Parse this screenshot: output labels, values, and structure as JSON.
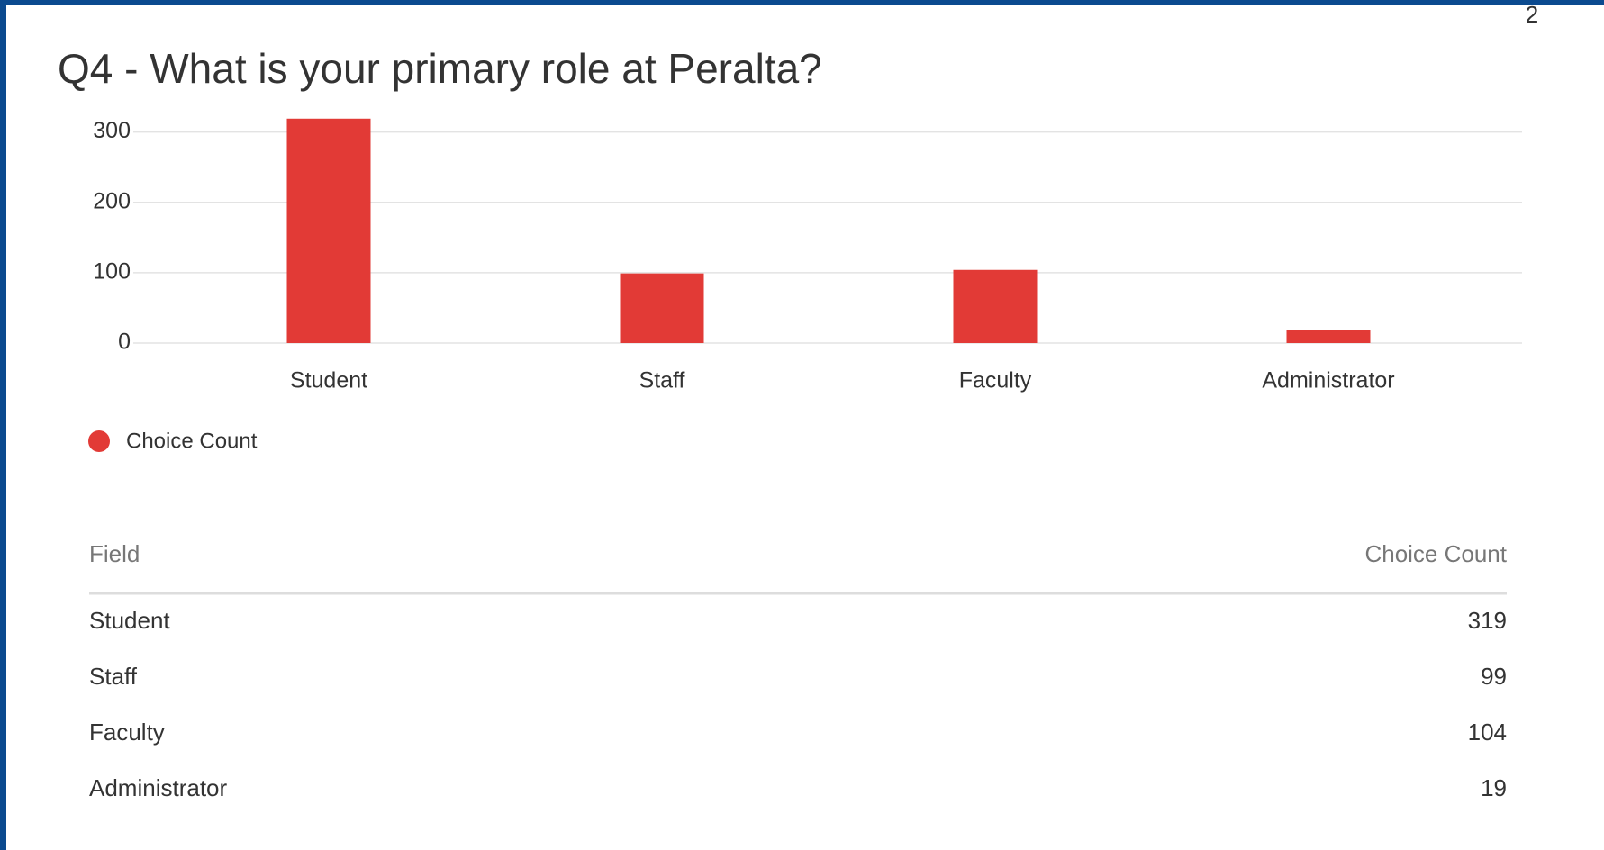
{
  "page_number": "2",
  "chart_data": {
    "type": "bar",
    "title": "Q4 - What is your primary role at Peralta?",
    "categories": [
      "Student",
      "Staff",
      "Faculty",
      "Administrator"
    ],
    "series": [
      {
        "name": "Choice Count",
        "color": "#e23a36",
        "values": [
          319,
          99,
          104,
          19
        ]
      }
    ],
    "ylim": [
      0,
      320
    ],
    "yticks": [
      0,
      100,
      200,
      300
    ],
    "grid": true,
    "legend": "bottom-left"
  },
  "table": {
    "columns": [
      "Field",
      "Choice Count"
    ],
    "rows": [
      [
        "Student",
        "319"
      ],
      [
        "Staff",
        "99"
      ],
      [
        "Faculty",
        "104"
      ],
      [
        "Administrator",
        "19"
      ]
    ]
  }
}
